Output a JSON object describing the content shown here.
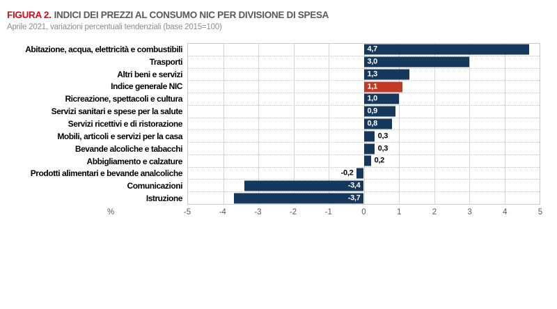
{
  "header": {
    "figure_label": "FIGURA 2.",
    "title": "INDICI DEI PREZZI AL CONSUMO NIC PER DIVISIONE DI SPESA",
    "subtitle": "Aprile 2021, variazioni percentuali tendenziali (base 2015=100)"
  },
  "chart_data": {
    "type": "bar",
    "orientation": "horizontal",
    "title": "INDICI DEI PREZZI AL CONSUMO NIC PER DIVISIONE DI SPESA",
    "subtitle": "Aprile 2021, variazioni percentuali tendenziali (base 2015=100)",
    "categories": [
      "Abitazione, acqua, elettricità e combustibili",
      "Trasporti",
      "Altri beni e servizi",
      "Indice generale NIC",
      "Ricreazione, spettacoli e cultura",
      "Servizi sanitari e spese per la salute",
      "Servizi ricettivi e di ristorazione",
      "Mobili, articoli e servizi per la casa",
      "Bevande alcoliche e tabacchi",
      "Abbigliamento e calzature",
      "Prodotti alimentari e bevande analcoliche",
      "Comunicazioni",
      "Istruzione"
    ],
    "values": [
      4.7,
      3.0,
      1.3,
      1.1,
      1.0,
      0.9,
      0.8,
      0.3,
      0.3,
      0.2,
      -0.2,
      -3.4,
      -3.7
    ],
    "value_labels": [
      "4,7",
      "3,0",
      "1,3",
      "1,1",
      "1,0",
      "0,9",
      "0,8",
      "0,3",
      "0,3",
      "0,2",
      "-0,2",
      "-3,4",
      "-3,7"
    ],
    "highlight_index": 3,
    "highlight_category": "Indice generale NIC",
    "xlim": [
      -5,
      5
    ],
    "x_ticks": [
      "-5",
      "-4",
      "-3",
      "-2",
      "-1",
      "0",
      "1",
      "2",
      "3",
      "4",
      "5"
    ],
    "x_unit_label": "%",
    "grid": true,
    "legend": "none",
    "colors": {
      "bar": "#14395c",
      "highlight": "#c13a26",
      "value_inside": "#ffffff",
      "value_outside": "#000000",
      "accent_red": "#e30613"
    }
  }
}
